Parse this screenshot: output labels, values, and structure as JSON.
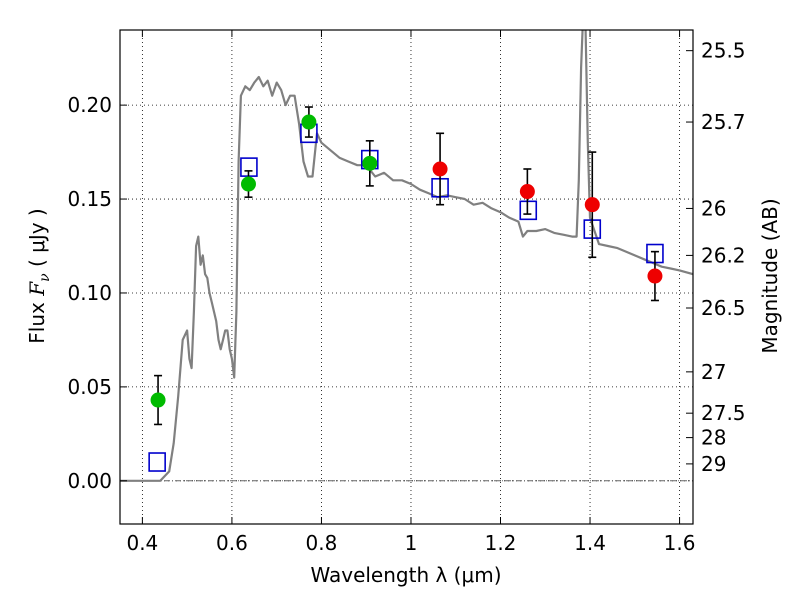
{
  "chart_data": {
    "type": "scatter",
    "title": "",
    "xlabel": "Wavelength  λ (μm)",
    "ylabel_prefix": "Flux  ",
    "ylabel_symbol": "F",
    "ylabel_sub": "ν",
    "ylabel_unit": "  ( μJy )",
    "y2label": "Magnitude (AB)",
    "xlim": [
      0.35,
      1.63
    ],
    "ylim": [
      -0.023,
      0.24
    ],
    "x_ticks": [
      0.4,
      0.6,
      0.8,
      1.0,
      1.2,
      1.4,
      1.6
    ],
    "x_tick_labels": [
      "0.4",
      "0.6",
      "0.8",
      "1",
      "1.2",
      "1.4",
      "1.6"
    ],
    "y_ticks": [
      0.0,
      0.05,
      0.1,
      0.15,
      0.2
    ],
    "y_tick_labels": [
      "0.00",
      "0.05",
      "0.10",
      "0.15",
      "0.20"
    ],
    "y2_ticks": [
      {
        "label": "25.5",
        "flux": 0.229
      },
      {
        "label": "25.7",
        "flux": 0.191
      },
      {
        "label": "26",
        "flux": 0.145
      },
      {
        "label": "26.2",
        "flux": 0.12
      },
      {
        "label": "26.5",
        "flux": 0.092
      },
      {
        "label": "27",
        "flux": 0.058
      },
      {
        "label": "27.5",
        "flux": 0.036
      },
      {
        "label": "28",
        "flux": 0.023
      },
      {
        "label": "29",
        "flux": 0.009
      }
    ],
    "grid": true,
    "zero_line": true,
    "colors": {
      "model": "#808080",
      "green": "#00bb00",
      "red": "#ee0000",
      "box": "#0000cc",
      "error": "#000000"
    },
    "series": [
      {
        "style": "line",
        "points": [
          [
            0.35,
            0.0
          ],
          [
            0.44,
            0.0
          ],
          [
            0.46,
            0.005
          ],
          [
            0.47,
            0.02
          ],
          [
            0.48,
            0.045
          ],
          [
            0.49,
            0.075
          ],
          [
            0.5,
            0.08
          ],
          [
            0.505,
            0.065
          ],
          [
            0.51,
            0.06
          ],
          [
            0.515,
            0.09
          ],
          [
            0.52,
            0.125
          ],
          [
            0.525,
            0.13
          ],
          [
            0.53,
            0.115
          ],
          [
            0.535,
            0.12
          ],
          [
            0.54,
            0.11
          ],
          [
            0.545,
            0.108
          ],
          [
            0.55,
            0.1
          ],
          [
            0.555,
            0.095
          ],
          [
            0.56,
            0.09
          ],
          [
            0.565,
            0.085
          ],
          [
            0.57,
            0.075
          ],
          [
            0.575,
            0.07
          ],
          [
            0.58,
            0.075
          ],
          [
            0.585,
            0.08
          ],
          [
            0.59,
            0.08
          ],
          [
            0.595,
            0.07
          ],
          [
            0.6,
            0.065
          ],
          [
            0.605,
            0.055
          ],
          [
            0.61,
            0.09
          ],
          [
            0.615,
            0.17
          ],
          [
            0.62,
            0.205
          ],
          [
            0.63,
            0.21
          ],
          [
            0.64,
            0.208
          ],
          [
            0.65,
            0.212
          ],
          [
            0.66,
            0.215
          ],
          [
            0.67,
            0.21
          ],
          [
            0.68,
            0.213
          ],
          [
            0.69,
            0.205
          ],
          [
            0.7,
            0.212
          ],
          [
            0.71,
            0.208
          ],
          [
            0.72,
            0.2
          ],
          [
            0.73,
            0.205
          ],
          [
            0.74,
            0.205
          ],
          [
            0.75,
            0.19
          ],
          [
            0.76,
            0.17
          ],
          [
            0.77,
            0.162
          ],
          [
            0.78,
            0.162
          ],
          [
            0.79,
            0.185
          ],
          [
            0.8,
            0.18
          ],
          [
            0.82,
            0.176
          ],
          [
            0.84,
            0.172
          ],
          [
            0.86,
            0.17
          ],
          [
            0.88,
            0.168
          ],
          [
            0.9,
            0.168
          ],
          [
            0.92,
            0.162
          ],
          [
            0.94,
            0.164
          ],
          [
            0.96,
            0.16
          ],
          [
            0.98,
            0.16
          ],
          [
            1.0,
            0.158
          ],
          [
            1.02,
            0.155
          ],
          [
            1.04,
            0.153
          ],
          [
            1.06,
            0.151
          ],
          [
            1.08,
            0.152
          ],
          [
            1.1,
            0.151
          ],
          [
            1.12,
            0.15
          ],
          [
            1.14,
            0.147
          ],
          [
            1.16,
            0.148
          ],
          [
            1.18,
            0.145
          ],
          [
            1.2,
            0.143
          ],
          [
            1.22,
            0.14
          ],
          [
            1.24,
            0.138
          ],
          [
            1.25,
            0.13
          ],
          [
            1.26,
            0.133
          ],
          [
            1.28,
            0.133
          ],
          [
            1.3,
            0.134
          ],
          [
            1.32,
            0.132
          ],
          [
            1.34,
            0.131
          ],
          [
            1.36,
            0.13
          ],
          [
            1.37,
            0.13
          ],
          [
            1.375,
            0.16
          ],
          [
            1.38,
            0.22
          ],
          [
            1.385,
            0.25
          ],
          [
            1.39,
            0.24
          ],
          [
            1.395,
            0.18
          ],
          [
            1.4,
            0.14
          ],
          [
            1.42,
            0.126
          ],
          [
            1.44,
            0.125
          ],
          [
            1.46,
            0.124
          ],
          [
            1.48,
            0.122
          ],
          [
            1.5,
            0.12
          ],
          [
            1.52,
            0.118
          ],
          [
            1.54,
            0.116
          ],
          [
            1.56,
            0.114
          ],
          [
            1.58,
            0.113
          ],
          [
            1.6,
            0.112
          ],
          [
            1.63,
            0.11
          ]
        ]
      },
      {
        "style": "circle-green",
        "points": [
          {
            "x": 0.435,
            "y": 0.043,
            "yerr": 0.013
          },
          {
            "x": 0.637,
            "y": 0.158,
            "yerr": 0.007
          },
          {
            "x": 0.772,
            "y": 0.191,
            "yerr": 0.008
          },
          {
            "x": 0.908,
            "y": 0.169,
            "yerr": 0.012
          }
        ]
      },
      {
        "style": "circle-red",
        "points": [
          {
            "x": 1.065,
            "y": 0.166,
            "yerr": 0.019
          },
          {
            "x": 1.26,
            "y": 0.154,
            "yerr": 0.012
          },
          {
            "x": 1.405,
            "y": 0.147,
            "yerr": 0.028
          },
          {
            "x": 1.545,
            "y": 0.109,
            "yerr": 0.013
          }
        ]
      },
      {
        "style": "square-blue",
        "points": [
          {
            "x": 0.433,
            "y": 0.01
          },
          {
            "x": 0.638,
            "y": 0.167
          },
          {
            "x": 0.772,
            "y": 0.185
          },
          {
            "x": 0.908,
            "y": 0.171
          },
          {
            "x": 1.065,
            "y": 0.156
          },
          {
            "x": 1.262,
            "y": 0.144
          },
          {
            "x": 1.405,
            "y": 0.134
          },
          {
            "x": 1.545,
            "y": 0.121
          }
        ]
      }
    ]
  }
}
